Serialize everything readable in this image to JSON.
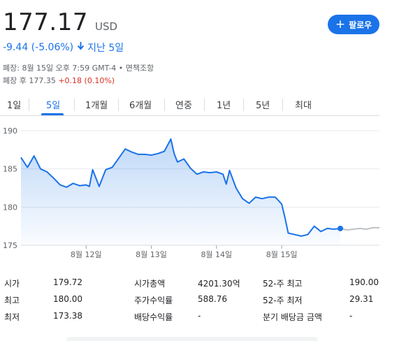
{
  "quote": {
    "price": "177.17",
    "currency": "USD",
    "change": "-9.44 (-5.06%)",
    "change_period": "지난 5일",
    "closed_line": "폐장: 8월 15일 오후 7:59 GMT-4 • 면책조항",
    "after_hours_prefix": "폐장 후 177.35",
    "after_hours_change": "+0.18 (0.10%)"
  },
  "follow_button": {
    "label": "팔로우"
  },
  "tabs": [
    {
      "label": "1일",
      "active": false
    },
    {
      "label": "5일",
      "active": true
    },
    {
      "label": "1개월",
      "active": false
    },
    {
      "label": "6개월",
      "active": false
    },
    {
      "label": "연중",
      "active": false
    },
    {
      "label": "1년",
      "active": false
    },
    {
      "label": "5년",
      "active": false
    },
    {
      "label": "최대",
      "active": false
    }
  ],
  "chart_data": {
    "type": "line",
    "y_ticks": [
      "190",
      "185",
      "180",
      "175"
    ],
    "x_ticks": [
      "8월 12일",
      "8월 13일",
      "8월 14일",
      "8월 15일"
    ],
    "ylim": [
      175,
      190
    ],
    "grid": true,
    "line_color": "#1a73e8",
    "after_hours_color": "#bdc1c6",
    "series": [
      {
        "x": [
          0.0,
          0.1,
          0.2,
          0.3,
          0.4,
          0.5,
          0.6,
          0.7,
          0.8,
          0.9,
          1.0,
          1.05,
          1.1,
          1.2,
          1.3,
          1.4,
          1.5,
          1.6,
          1.7,
          1.8,
          1.9,
          2.0,
          2.1,
          2.2,
          2.3,
          2.35,
          2.4,
          2.5,
          2.6,
          2.7,
          2.8,
          2.9,
          3.0,
          3.1,
          3.15,
          3.2,
          3.3,
          3.4,
          3.5,
          3.6,
          3.7,
          3.8,
          3.9,
          4.0,
          4.05,
          4.1,
          4.2,
          4.3,
          4.4,
          4.5,
          4.6,
          4.7,
          4.8,
          4.9
        ],
        "y": [
          186.5,
          185.2,
          186.7,
          185.0,
          184.6,
          183.8,
          182.9,
          182.6,
          183.1,
          182.8,
          182.9,
          182.7,
          184.9,
          182.7,
          184.9,
          185.2,
          186.4,
          187.6,
          187.2,
          186.9,
          186.9,
          186.8,
          187.0,
          187.3,
          188.9,
          187.0,
          185.9,
          186.3,
          185.1,
          184.3,
          184.6,
          184.5,
          184.6,
          184.3,
          183.0,
          184.8,
          182.5,
          181.1,
          180.5,
          181.3,
          181.1,
          181.3,
          181.3,
          180.4,
          178.6,
          176.6,
          176.4,
          176.2,
          176.4,
          177.5,
          176.8,
          177.2,
          177.1,
          177.2
        ]
      },
      {
        "x": [
          4.9,
          5.0,
          5.1,
          5.2,
          5.3,
          5.4,
          5.5
        ],
        "y": [
          177.2,
          177.0,
          177.1,
          177.2,
          177.1,
          177.3,
          177.3
        ]
      }
    ]
  },
  "stats": {
    "col1": [
      {
        "label": "시가",
        "value": "179.72"
      },
      {
        "label": "최고",
        "value": "180.00"
      },
      {
        "label": "최저",
        "value": "173.38"
      }
    ],
    "col2": [
      {
        "label": "시가총액",
        "value": "4201.30억"
      },
      {
        "label": "주가수익률",
        "value": "588.76"
      },
      {
        "label": "배당수익률",
        "value": "-"
      }
    ],
    "col3": [
      {
        "label": "52-주 최고",
        "value": "190.00"
      },
      {
        "label": "52-주 최저",
        "value": "29.31"
      },
      {
        "label": "분기 배당금 금액",
        "value": "-"
      }
    ]
  }
}
